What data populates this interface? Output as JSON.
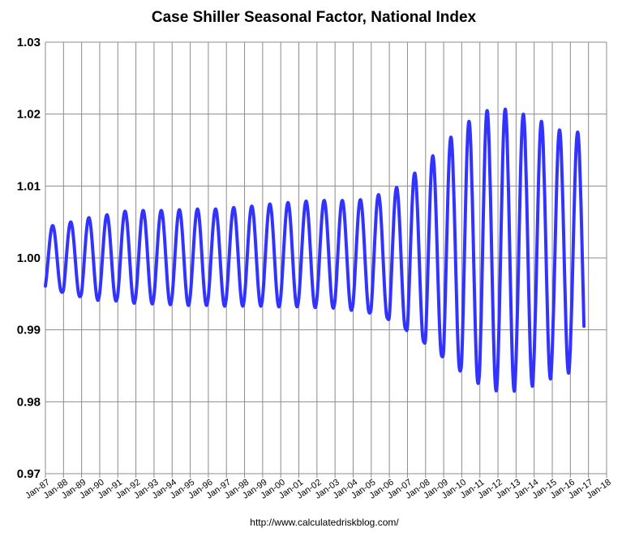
{
  "chart_data": {
    "type": "line",
    "title": "Case Shiller Seasonal Factor, National Index",
    "xlabel": "",
    "ylabel": "",
    "source_text": "http://www.calculatedriskblog.com/",
    "ylim": [
      0.97,
      1.03
    ],
    "y_ticks": [
      "0.97",
      "0.98",
      "0.99",
      "1.00",
      "1.01",
      "1.02",
      "1.03"
    ],
    "x_range": [
      "Jan-87",
      "Jan-18"
    ],
    "x_ticks": [
      "Jan-87",
      "Jan-88",
      "Jan-89",
      "Jan-90",
      "Jan-91",
      "Jan-92",
      "Jan-93",
      "Jan-94",
      "Jan-95",
      "Jan-96",
      "Jan-97",
      "Jan-98",
      "Jan-99",
      "Jan-00",
      "Jan-01",
      "Jan-02",
      "Jan-03",
      "Jan-04",
      "Jan-05",
      "Jan-06",
      "Jan-07",
      "Jan-08",
      "Jan-09",
      "Jan-10",
      "Jan-11",
      "Jan-12",
      "Jan-13",
      "Jan-14",
      "Jan-15",
      "Jan-16",
      "Jan-17",
      "Jan-18"
    ],
    "grid": "horizontal and vertical",
    "series": [
      {
        "color": "#3333ff",
        "first_month": "Jan-87",
        "last_month": "Oct-16",
        "annual_extremes": [
          {
            "year": 1987,
            "max": 1.0045,
            "min": 0.9952
          },
          {
            "year": 1988,
            "max": 1.005,
            "min": 0.9946
          },
          {
            "year": 1989,
            "max": 1.0056,
            "min": 0.9941
          },
          {
            "year": 1990,
            "max": 1.006,
            "min": 0.994
          },
          {
            "year": 1991,
            "max": 1.0065,
            "min": 0.9937
          },
          {
            "year": 1992,
            "max": 1.0066,
            "min": 0.9936
          },
          {
            "year": 1993,
            "max": 1.0066,
            "min": 0.9935
          },
          {
            "year": 1994,
            "max": 1.0067,
            "min": 0.9934
          },
          {
            "year": 1995,
            "max": 1.0068,
            "min": 0.9934
          },
          {
            "year": 1996,
            "max": 1.0068,
            "min": 0.9933
          },
          {
            "year": 1997,
            "max": 1.007,
            "min": 0.9933
          },
          {
            "year": 1998,
            "max": 1.0072,
            "min": 0.9933
          },
          {
            "year": 1999,
            "max": 1.0075,
            "min": 0.9932
          },
          {
            "year": 2000,
            "max": 1.0077,
            "min": 0.9932
          },
          {
            "year": 2001,
            "max": 1.0079,
            "min": 0.9931
          },
          {
            "year": 2002,
            "max": 1.008,
            "min": 0.993
          },
          {
            "year": 2003,
            "max": 1.008,
            "min": 0.9927
          },
          {
            "year": 2004,
            "max": 1.0081,
            "min": 0.9923
          },
          {
            "year": 2005,
            "max": 1.0088,
            "min": 0.9915
          },
          {
            "year": 2006,
            "max": 1.0098,
            "min": 0.99
          },
          {
            "year": 2007,
            "max": 1.0118,
            "min": 0.9882
          },
          {
            "year": 2008,
            "max": 1.0142,
            "min": 0.9862
          },
          {
            "year": 2009,
            "max": 1.0168,
            "min": 0.9842
          },
          {
            "year": 2010,
            "max": 1.019,
            "min": 0.9825
          },
          {
            "year": 2011,
            "max": 1.0205,
            "min": 0.9815
          },
          {
            "year": 2012,
            "max": 1.0207,
            "min": 0.9815
          },
          {
            "year": 2013,
            "max": 1.02,
            "min": 0.9822
          },
          {
            "year": 2014,
            "max": 1.019,
            "min": 0.9832
          },
          {
            "year": 2015,
            "max": 1.0178,
            "min": 0.984
          },
          {
            "year": 2016,
            "max": 1.0175,
            "min": 0.9845
          }
        ],
        "final_value": 0.9905
      }
    ]
  }
}
